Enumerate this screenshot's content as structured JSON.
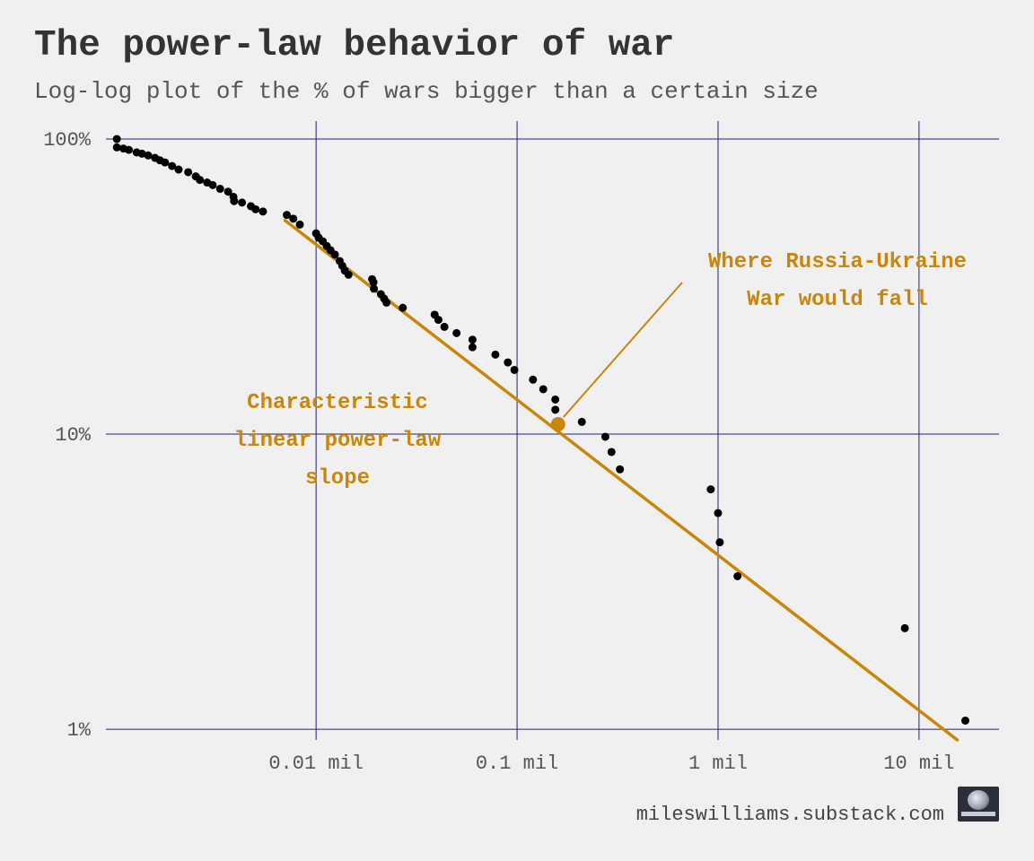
{
  "title": "The power-law behavior of war",
  "subtitle": "Log-log plot of the % of wars bigger than a certain size",
  "caption": "mileswilliams.substack.com",
  "colors": {
    "background": "#f0f0f0",
    "grid": "#1f1f7a",
    "points": "#000000",
    "accent": "#c8860a"
  },
  "logo_icon": "globe-logo-icon",
  "chart_data": {
    "type": "scatter",
    "x_scale": "log",
    "y_scale": "log",
    "xlim": [
      0.0009,
      25
    ],
    "ylim": [
      0.8,
      100
    ],
    "grid": true,
    "x_ticks": [
      {
        "value": 0.01,
        "label": "0.01 mil"
      },
      {
        "value": 0.1,
        "label": "0.1 mil"
      },
      {
        "value": 1,
        "label": "1 mil"
      },
      {
        "value": 10,
        "label": "10 mil"
      }
    ],
    "y_ticks": [
      {
        "value": 100,
        "label": "100%"
      },
      {
        "value": 10,
        "label": "10%"
      },
      {
        "value": 1,
        "label": "1%"
      }
    ],
    "points": [
      [
        0.00102,
        100
      ],
      [
        0.00102,
        93.7
      ],
      [
        0.0011,
        92.8
      ],
      [
        0.00117,
        91.9
      ],
      [
        0.00128,
        90.1
      ],
      [
        0.00136,
        89.2
      ],
      [
        0.00146,
        88.0
      ],
      [
        0.00158,
        86.3
      ],
      [
        0.00167,
        84.7
      ],
      [
        0.00177,
        83.3
      ],
      [
        0.00192,
        81.0
      ],
      [
        0.00207,
        78.8
      ],
      [
        0.00231,
        77.2
      ],
      [
        0.00252,
        74.7
      ],
      [
        0.00264,
        72.7
      ],
      [
        0.00287,
        71.2
      ],
      [
        0.00306,
        69.8
      ],
      [
        0.00333,
        67.8
      ],
      [
        0.00365,
        66.3
      ],
      [
        0.00388,
        63.7
      ],
      [
        0.00391,
        61.6
      ],
      [
        0.00428,
        60.9
      ],
      [
        0.00474,
        59.2
      ],
      [
        0.005,
        57.8
      ],
      [
        0.00544,
        56.8
      ],
      [
        0.00715,
        55.3
      ],
      [
        0.0077,
        53.7
      ],
      [
        0.0083,
        51.3
      ],
      [
        0.01,
        47.9
      ],
      [
        0.0103,
        46.3
      ],
      [
        0.0108,
        45.0
      ],
      [
        0.0113,
        43.4
      ],
      [
        0.0118,
        42.0
      ],
      [
        0.0124,
        40.6
      ],
      [
        0.0131,
        38.6
      ],
      [
        0.0135,
        37.2
      ],
      [
        0.0139,
        35.8
      ],
      [
        0.0145,
        34.7
      ],
      [
        0.019,
        33.5
      ],
      [
        0.0193,
        32.7
      ],
      [
        0.0194,
        31.1
      ],
      [
        0.021,
        29.8
      ],
      [
        0.0218,
        28.8
      ],
      [
        0.0224,
        27.9
      ],
      [
        0.027,
        26.8
      ],
      [
        0.0389,
        25.4
      ],
      [
        0.0406,
        24.4
      ],
      [
        0.0435,
        23.1
      ],
      [
        0.05,
        22.0
      ],
      [
        0.06,
        20.9
      ],
      [
        0.06,
        19.7
      ],
      [
        0.078,
        18.6
      ],
      [
        0.09,
        17.5
      ],
      [
        0.097,
        16.5
      ],
      [
        0.12,
        15.3
      ],
      [
        0.135,
        14.2
      ],
      [
        0.155,
        13.1
      ],
      [
        0.155,
        12.1
      ],
      [
        0.21,
        11.0
      ],
      [
        0.275,
        9.8
      ],
      [
        0.295,
        8.7
      ],
      [
        0.325,
        7.6
      ],
      [
        0.92,
        6.5
      ],
      [
        1.0,
        5.4
      ],
      [
        1.02,
        4.3
      ],
      [
        1.25,
        3.3
      ],
      [
        8.5,
        2.2
      ],
      [
        17.0,
        1.07
      ]
    ],
    "trend_line": {
      "name": "Characteristic linear power-law slope",
      "from": [
        0.007,
        53
      ],
      "to": [
        15.5,
        0.92
      ]
    },
    "highlight_point": {
      "x": 0.16,
      "y": 10.8
    },
    "annotations": [
      {
        "text": [
          "Characteristic",
          "linear power-law",
          "slope"
        ]
      },
      {
        "text": [
          "Where Russia-Ukraine",
          "War would fall"
        ]
      }
    ]
  }
}
